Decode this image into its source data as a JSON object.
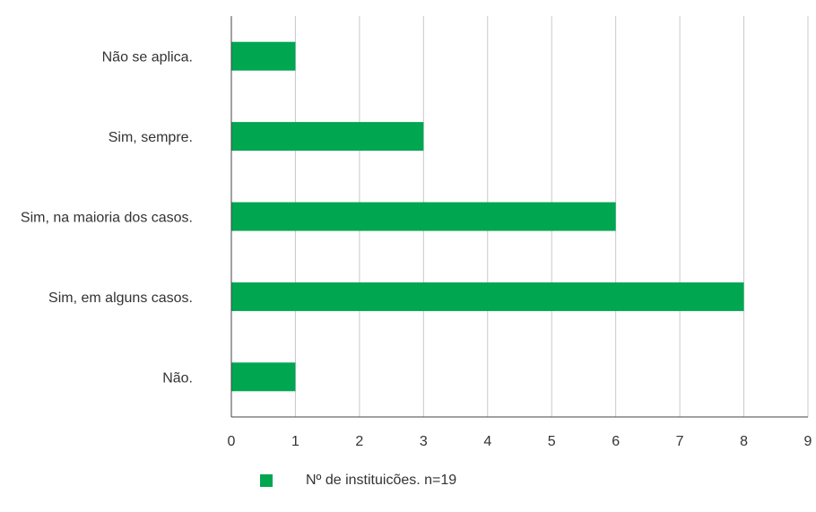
{
  "chart_data": {
    "type": "bar",
    "orientation": "horizontal",
    "categories": [
      "Não se aplica.",
      "Sim, sempre.",
      "Sim, na maioria dos casos.",
      "Sim, em alguns casos.",
      "Não."
    ],
    "series": [
      {
        "name": "Nº de instituicões. n=19",
        "values": [
          1,
          3,
          6,
          8,
          1
        ]
      }
    ],
    "xlim": [
      0,
      9
    ],
    "x_ticks": [
      "0",
      "1",
      "2",
      "3",
      "4",
      "5",
      "6",
      "7",
      "8",
      "9"
    ],
    "grid": "vertical",
    "legend_position": "bottom-center",
    "bar_color": "#00a650",
    "grid_color": "#c8c8c8",
    "axis_color": "#444444"
  },
  "legend": {
    "label": "Nº de instituicões. n=19"
  }
}
